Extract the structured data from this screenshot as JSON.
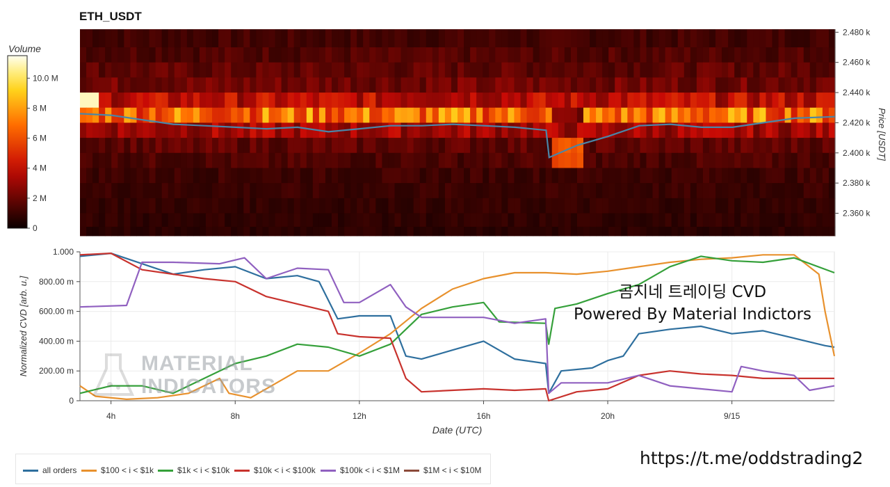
{
  "header": {
    "title": "ETH_USDT"
  },
  "colorbar": {
    "title": "Volume",
    "ticks": [
      {
        "label": "10.0 M",
        "value": 10.0
      },
      {
        "label": "8 M",
        "value": 8
      },
      {
        "label": "6 M",
        "value": 6
      },
      {
        "label": "4 M",
        "value": 4
      },
      {
        "label": "2 M",
        "value": 2
      },
      {
        "label": "0",
        "value": 0
      }
    ],
    "max": 11.5
  },
  "annotation": {
    "line1": "곰지네 트레이딩 CVD",
    "line2": "Powered By Material Indictors"
  },
  "watermark_logo": {
    "text_line1": "MATERIAL",
    "text_line2": "INDICATORS"
  },
  "footer": {
    "link": "https://t.me/oddstrading2"
  },
  "legend": [
    {
      "label": "all orders",
      "color": "#2e6f9e"
    },
    {
      "label": "$100 < i < $1k",
      "color": "#e8912d"
    },
    {
      "label": "$1k < i < $10k",
      "color": "#35a03a"
    },
    {
      "label": "$10k < i < $100k",
      "color": "#c8322d"
    },
    {
      "label": "$100k < i < $1M",
      "color": "#9060c0"
    },
    {
      "label": "$1M < i < $10M",
      "color": "#8b4a3a"
    }
  ],
  "chart_data": [
    {
      "type": "heatmap",
      "title": "ETH_USDT",
      "ylabel": "Price [USDT]",
      "ylim": [
        2345,
        2482
      ],
      "y_ticks": [
        {
          "label": "2.480 k",
          "value": 2480
        },
        {
          "label": "2.460 k",
          "value": 2460
        },
        {
          "label": "2.440 k",
          "value": 2440
        },
        {
          "label": "2.420 k",
          "value": 2420
        },
        {
          "label": "2.400 k",
          "value": 2400
        },
        {
          "label": "2.380 k",
          "value": 2380
        },
        {
          "label": "2.360 k",
          "value": 2360
        }
      ],
      "x_range_hours": [
        3.0,
        27.3
      ],
      "colorscale": "hot",
      "value_label": "Volume",
      "price_bins": [
        2475,
        2465,
        2455,
        2445,
        2435,
        2425,
        2415,
        2405,
        2395,
        2385,
        2375,
        2365,
        2355,
        2347
      ],
      "row_volume_M": [
        1.2,
        1.5,
        1.8,
        2.2,
        3.8,
        6.8,
        3.2,
        1.8,
        1.4,
        1.1,
        1.0,
        0.9,
        0.8,
        0.7
      ],
      "price_line": {
        "color": "#4a86a8",
        "points": [
          [
            3.0,
            2426
          ],
          [
            4.0,
            2425
          ],
          [
            5.0,
            2422
          ],
          [
            6.0,
            2419
          ],
          [
            7.0,
            2418
          ],
          [
            8.0,
            2417
          ],
          [
            9.0,
            2416
          ],
          [
            10.0,
            2417
          ],
          [
            11.0,
            2414
          ],
          [
            12.0,
            2416
          ],
          [
            13.0,
            2418
          ],
          [
            14.0,
            2418
          ],
          [
            15.0,
            2419
          ],
          [
            16.0,
            2418
          ],
          [
            17.0,
            2417
          ],
          [
            18.0,
            2415
          ],
          [
            18.1,
            2397
          ],
          [
            19.0,
            2405
          ],
          [
            20.0,
            2411
          ],
          [
            21.0,
            2418
          ],
          [
            22.0,
            2419
          ],
          [
            23.0,
            2417
          ],
          [
            24.0,
            2417
          ],
          [
            25.0,
            2420
          ],
          [
            26.0,
            2423
          ],
          [
            27.3,
            2424
          ]
        ]
      }
    },
    {
      "type": "line",
      "xlabel": "Date (UTC)",
      "ylabel": "Normalized CVD [arb. u.]",
      "xlim": [
        3.0,
        27.3
      ],
      "ylim": [
        0,
        1.0
      ],
      "x_ticks": [
        {
          "label": "4h",
          "value": 4
        },
        {
          "label": "8h",
          "value": 8
        },
        {
          "label": "12h",
          "value": 12
        },
        {
          "label": "16h",
          "value": 16
        },
        {
          "label": "20h",
          "value": 20
        },
        {
          "label": "9/15",
          "value": 24
        }
      ],
      "y_ticks": [
        {
          "label": "0",
          "value": 0
        },
        {
          "label": "200.00 m",
          "value": 0.2
        },
        {
          "label": "400.00 m",
          "value": 0.4
        },
        {
          "label": "600.00 m",
          "value": 0.6
        },
        {
          "label": "800.00 m",
          "value": 0.8
        },
        {
          "label": "1.000",
          "value": 1.0
        }
      ],
      "grid": true,
      "legend_position": "bottom-left",
      "series": [
        {
          "name": "all orders",
          "color": "#2e6f9e",
          "points": [
            [
              3.0,
              0.97
            ],
            [
              4.0,
              0.99
            ],
            [
              5.0,
              0.92
            ],
            [
              6.0,
              0.85
            ],
            [
              7.0,
              0.88
            ],
            [
              8.0,
              0.9
            ],
            [
              9.0,
              0.82
            ],
            [
              10.0,
              0.84
            ],
            [
              10.7,
              0.8
            ],
            [
              11.3,
              0.55
            ],
            [
              12.0,
              0.57
            ],
            [
              13.0,
              0.57
            ],
            [
              13.5,
              0.3
            ],
            [
              14.0,
              0.28
            ],
            [
              15.0,
              0.34
            ],
            [
              16.0,
              0.4
            ],
            [
              17.0,
              0.28
            ],
            [
              18.0,
              0.25
            ],
            [
              18.1,
              0.05
            ],
            [
              18.5,
              0.2
            ],
            [
              19.5,
              0.22
            ],
            [
              20.0,
              0.27
            ],
            [
              20.5,
              0.3
            ],
            [
              21.0,
              0.45
            ],
            [
              22.0,
              0.48
            ],
            [
              23.0,
              0.5
            ],
            [
              24.0,
              0.45
            ],
            [
              25.0,
              0.47
            ],
            [
              26.0,
              0.42
            ],
            [
              27.0,
              0.37
            ],
            [
              27.3,
              0.36
            ]
          ]
        },
        {
          "name": "$100 < i < $1k",
          "color": "#e8912d",
          "points": [
            [
              3.0,
              0.1
            ],
            [
              3.5,
              0.03
            ],
            [
              4.5,
              0.01
            ],
            [
              5.5,
              0.02
            ],
            [
              6.5,
              0.05
            ],
            [
              7.5,
              0.15
            ],
            [
              7.8,
              0.05
            ],
            [
              8.5,
              0.02
            ],
            [
              9.0,
              0.08
            ],
            [
              10.0,
              0.2
            ],
            [
              11.0,
              0.2
            ],
            [
              12.0,
              0.32
            ],
            [
              13.0,
              0.45
            ],
            [
              14.0,
              0.62
            ],
            [
              15.0,
              0.75
            ],
            [
              16.0,
              0.82
            ],
            [
              17.0,
              0.86
            ],
            [
              18.0,
              0.86
            ],
            [
              19.0,
              0.85
            ],
            [
              20.0,
              0.87
            ],
            [
              21.0,
              0.9
            ],
            [
              22.0,
              0.93
            ],
            [
              23.0,
              0.95
            ],
            [
              24.0,
              0.96
            ],
            [
              25.0,
              0.98
            ],
            [
              26.0,
              0.98
            ],
            [
              26.8,
              0.85
            ],
            [
              27.0,
              0.6
            ],
            [
              27.3,
              0.3
            ]
          ]
        },
        {
          "name": "$1k < i < $10k",
          "color": "#35a03a",
          "points": [
            [
              3.0,
              0.05
            ],
            [
              4.0,
              0.1
            ],
            [
              5.0,
              0.1
            ],
            [
              6.0,
              0.05
            ],
            [
              7.0,
              0.15
            ],
            [
              8.0,
              0.25
            ],
            [
              9.0,
              0.3
            ],
            [
              10.0,
              0.38
            ],
            [
              11.0,
              0.36
            ],
            [
              12.0,
              0.3
            ],
            [
              13.0,
              0.38
            ],
            [
              14.0,
              0.58
            ],
            [
              15.0,
              0.63
            ],
            [
              16.0,
              0.66
            ],
            [
              16.5,
              0.53
            ],
            [
              18.0,
              0.52
            ],
            [
              18.1,
              0.38
            ],
            [
              18.3,
              0.62
            ],
            [
              19.0,
              0.65
            ],
            [
              20.0,
              0.72
            ],
            [
              21.0,
              0.78
            ],
            [
              22.0,
              0.9
            ],
            [
              23.0,
              0.97
            ],
            [
              24.0,
              0.94
            ],
            [
              25.0,
              0.93
            ],
            [
              26.0,
              0.96
            ],
            [
              27.3,
              0.86
            ]
          ]
        },
        {
          "name": "$10k < i < $100k",
          "color": "#c8322d",
          "points": [
            [
              3.0,
              0.98
            ],
            [
              4.0,
              0.99
            ],
            [
              5.0,
              0.88
            ],
            [
              6.0,
              0.85
            ],
            [
              7.0,
              0.82
            ],
            [
              8.0,
              0.8
            ],
            [
              9.0,
              0.7
            ],
            [
              10.0,
              0.65
            ],
            [
              11.0,
              0.6
            ],
            [
              11.3,
              0.45
            ],
            [
              12.0,
              0.43
            ],
            [
              13.0,
              0.42
            ],
            [
              13.5,
              0.15
            ],
            [
              14.0,
              0.06
            ],
            [
              15.0,
              0.07
            ],
            [
              16.0,
              0.08
            ],
            [
              17.0,
              0.07
            ],
            [
              18.0,
              0.08
            ],
            [
              18.1,
              0.0
            ],
            [
              19.0,
              0.06
            ],
            [
              20.0,
              0.08
            ],
            [
              21.0,
              0.17
            ],
            [
              22.0,
              0.2
            ],
            [
              23.0,
              0.18
            ],
            [
              24.0,
              0.17
            ],
            [
              25.0,
              0.15
            ],
            [
              26.0,
              0.15
            ],
            [
              27.3,
              0.15
            ]
          ]
        },
        {
          "name": "$100k < i < $1M",
          "color": "#9060c0",
          "points": [
            [
              3.0,
              0.63
            ],
            [
              4.5,
              0.64
            ],
            [
              5.0,
              0.93
            ],
            [
              6.0,
              0.93
            ],
            [
              7.5,
              0.92
            ],
            [
              8.3,
              0.96
            ],
            [
              9.0,
              0.82
            ],
            [
              10.0,
              0.89
            ],
            [
              11.0,
              0.88
            ],
            [
              11.5,
              0.66
            ],
            [
              12.0,
              0.66
            ],
            [
              13.0,
              0.78
            ],
            [
              13.5,
              0.63
            ],
            [
              14.0,
              0.56
            ],
            [
              16.0,
              0.56
            ],
            [
              17.0,
              0.52
            ],
            [
              18.0,
              0.55
            ],
            [
              18.1,
              0.05
            ],
            [
              18.5,
              0.12
            ],
            [
              20.0,
              0.12
            ],
            [
              21.0,
              0.17
            ],
            [
              22.0,
              0.1
            ],
            [
              24.0,
              0.06
            ],
            [
              24.3,
              0.23
            ],
            [
              25.0,
              0.2
            ],
            [
              26.0,
              0.17
            ],
            [
              26.5,
              0.07
            ],
            [
              27.3,
              0.1
            ]
          ]
        },
        {
          "name": "$1M < i < $10M",
          "color": "#8b4a3a",
          "points": []
        }
      ]
    }
  ]
}
